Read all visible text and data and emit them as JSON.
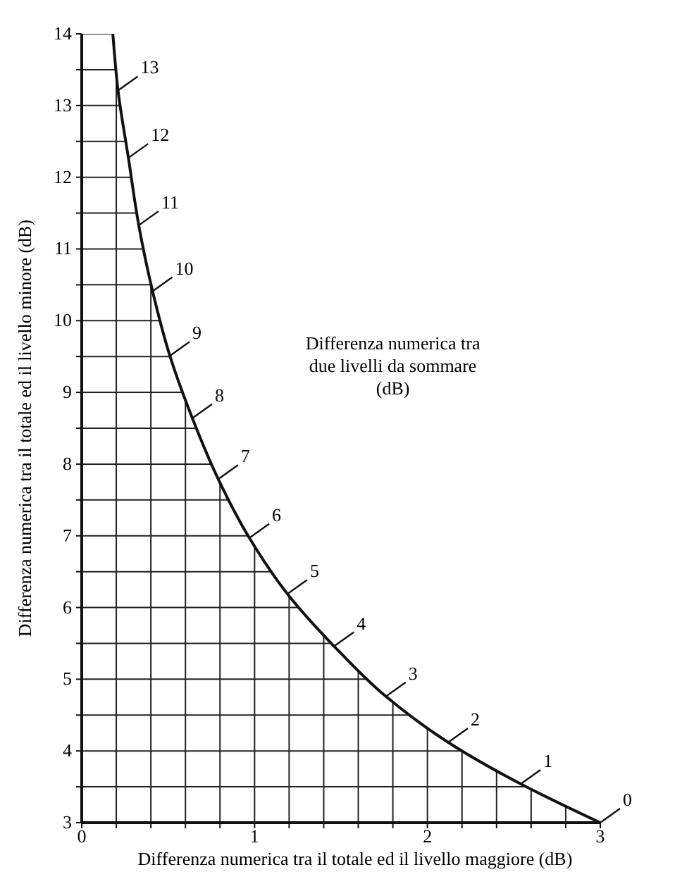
{
  "chart_data": {
    "type": "line",
    "xlabel": "Differenza numerica tra il totale ed il livello maggiore (dB)",
    "ylabel": "Differenza numerica tra il totale ed il livello minore (dB)",
    "x": [
      3.0,
      2.54,
      2.12,
      1.76,
      1.46,
      1.19,
      0.97,
      0.79,
      0.64,
      0.51,
      0.41,
      0.33,
      0.27,
      0.21,
      0.18
    ],
    "series": [
      {
        "color": "#111111",
        "values": [
          3.0,
          3.54,
          4.12,
          4.76,
          5.46,
          6.19,
          6.97,
          7.79,
          8.64,
          9.51,
          10.41,
          11.33,
          12.27,
          13.21,
          14.0
        ]
      }
    ],
    "xlim": [
      0,
      3
    ],
    "ylim": [
      3,
      14
    ],
    "xticks": [
      0,
      {
        "value": 0.2,
        "label": null
      },
      {
        "value": 0.4,
        "label": null
      },
      {
        "value": 0.6,
        "label": null
      },
      {
        "value": 0.8,
        "label": null
      },
      1,
      {
        "value": 1.2,
        "label": null
      },
      {
        "value": 1.4,
        "label": null
      },
      {
        "value": 1.6,
        "label": null
      },
      {
        "value": 1.8,
        "label": null
      },
      2,
      {
        "value": 2.2,
        "label": null
      },
      {
        "value": 2.4,
        "label": null
      },
      {
        "value": 2.6,
        "label": null
      },
      {
        "value": 2.8,
        "label": null
      },
      3
    ],
    "yticks": [
      3,
      {
        "value": 3.5,
        "label": null
      },
      4,
      {
        "value": 4.5,
        "label": null
      },
      5,
      {
        "value": 5.5,
        "label": null
      },
      6,
      {
        "value": 6.5,
        "label": null
      },
      7,
      {
        "value": 7.5,
        "label": null
      },
      8,
      {
        "value": 8.5,
        "label": null
      },
      9,
      {
        "value": 9.5,
        "label": null
      },
      10,
      {
        "value": 10.5,
        "label": null
      },
      11,
      {
        "value": 11.5,
        "label": null
      },
      12,
      {
        "value": 12.5,
        "label": null
      },
      13,
      {
        "value": 13.5,
        "label": null
      },
      14
    ],
    "grid": true,
    "marker": "none",
    "line_style": "solid",
    "annotations": [
      {
        "text": "0",
        "x": 3.0,
        "y": 3.0
      },
      {
        "text": "1",
        "x": 2.54,
        "y": 3.54
      },
      {
        "text": "2",
        "x": 2.12,
        "y": 4.12
      },
      {
        "text": "3",
        "x": 1.76,
        "y": 4.76
      },
      {
        "text": "4",
        "x": 1.46,
        "y": 5.46
      },
      {
        "text": "5",
        "x": 1.19,
        "y": 6.19
      },
      {
        "text": "6",
        "x": 0.97,
        "y": 6.97
      },
      {
        "text": "7",
        "x": 0.79,
        "y": 7.79
      },
      {
        "text": "8",
        "x": 0.64,
        "y": 8.64
      },
      {
        "text": "9",
        "x": 0.51,
        "y": 9.51
      },
      {
        "text": "10",
        "x": 0.41,
        "y": 10.41
      },
      {
        "text": "11",
        "x": 0.33,
        "y": 11.33
      },
      {
        "text": "12",
        "x": 0.27,
        "y": 12.27
      },
      {
        "text": "13",
        "x": 0.21,
        "y": 13.21
      },
      "Differenza numerica tra due livelli da sommare (dB)"
    ]
  }
}
